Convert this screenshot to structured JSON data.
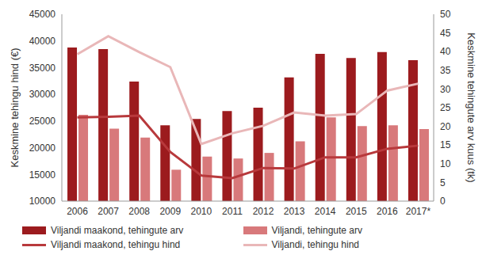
{
  "chart_data": {
    "type": "bar",
    "categories": [
      "2006",
      "2007",
      "2008",
      "2009",
      "2010",
      "2011",
      "2012",
      "2013",
      "2014",
      "2015",
      "2016",
      "2017*"
    ],
    "y_label": "Keskmine tehingu hind (€)",
    "y2_label": "Keskmine tehingute arv kuus (tk)",
    "ylim": [
      10000,
      45000
    ],
    "yticks": [
      10000,
      15000,
      20000,
      25000,
      30000,
      35000,
      40000,
      45000
    ],
    "y2lim": [
      0,
      50
    ],
    "y2ticks": [
      0,
      5,
      10,
      15,
      20,
      25,
      30,
      35,
      40,
      45,
      50
    ],
    "grid": false,
    "legend": "bottom",
    "series": [
      {
        "name": "Viljandi maakond, tehingute arv",
        "type": "bar",
        "axis": "y2",
        "color": "#9c1b1e",
        "values": [
          41.1,
          40.7,
          32,
          20.3,
          22,
          24.1,
          25,
          33.1,
          39.4,
          38.3,
          39.9,
          37.7
        ]
      },
      {
        "name": "Viljandi, tehingute arv",
        "type": "bar",
        "axis": "y2",
        "color": "#d8797b",
        "values": [
          23.1,
          19.4,
          17,
          8.4,
          11.9,
          11.4,
          12.9,
          16,
          22.4,
          20.1,
          20.3,
          19.3
        ]
      },
      {
        "name": "Viljandi maakond, tehingu hind",
        "type": "line",
        "color": "#b8393c",
        "values": [
          25700,
          25800,
          26000,
          19200,
          14800,
          14300,
          16200,
          16100,
          18200,
          18200,
          19800,
          20400
        ]
      },
      {
        "name": "Viljandi, tehingu hind",
        "type": "line",
        "color": "#e9b7b8",
        "values": [
          37500,
          40900,
          37900,
          35100,
          20700,
          22700,
          24100,
          26600,
          26000,
          26300,
          30700,
          32000
        ]
      }
    ]
  }
}
